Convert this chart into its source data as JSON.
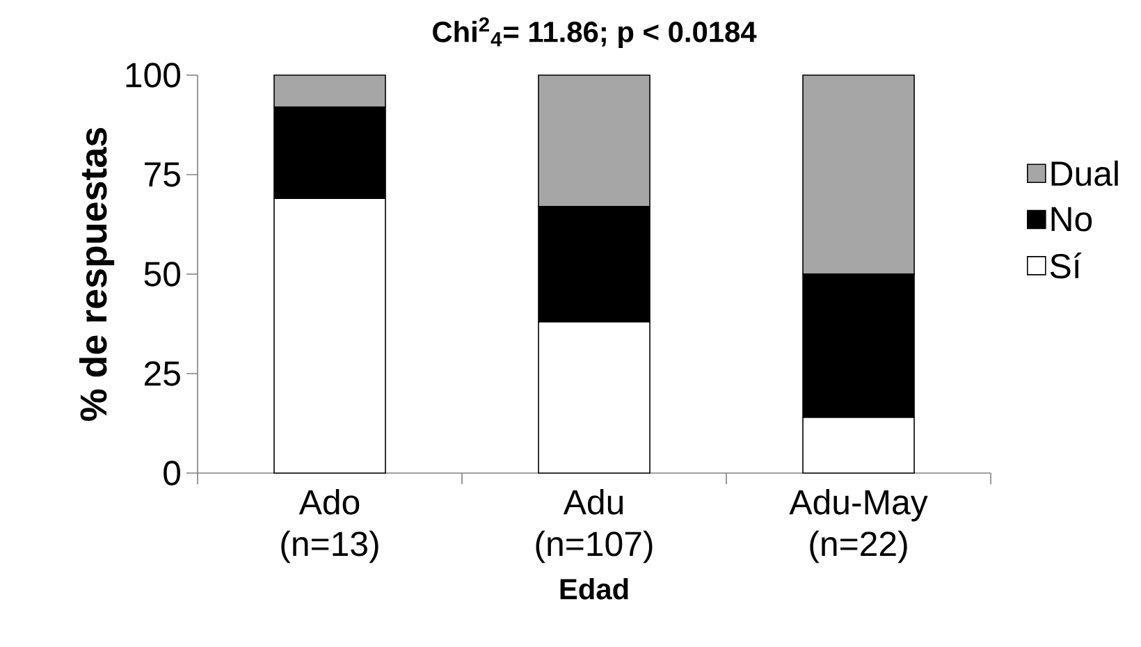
{
  "chart_data": {
    "type": "bar",
    "stacked": true,
    "title": "Chi$^{2}$$_{4}$= 11.86; p < 0.0184",
    "xlabel": "Edad",
    "ylabel": "% de respuestas",
    "categories": [
      "Ado (n=13)",
      "Adu (n=107)",
      "Adu-May (n=22)"
    ],
    "series": [
      {
        "name": "Sí",
        "color": "#ffffff",
        "values": [
          69,
          38,
          14
        ]
      },
      {
        "name": "No",
        "color": "#000000",
        "values": [
          23,
          29,
          36
        ]
      },
      {
        "name": "Dual",
        "color": "#a6a6a6",
        "values": [
          8,
          33,
          50
        ]
      }
    ],
    "ylim": [
      0,
      100
    ],
    "yticks": [
      0,
      25,
      50,
      75,
      100
    ],
    "grid": false,
    "legend": "right"
  }
}
